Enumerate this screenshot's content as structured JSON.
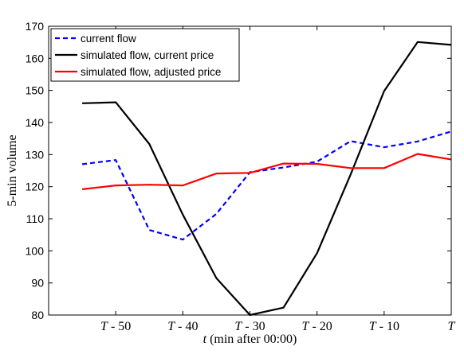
{
  "chart_data": {
    "type": "line",
    "title": "",
    "xlabel": "t (min after 00:00)",
    "xlabel_italic": "t",
    "xlabel_rest": " (min after 00:00)",
    "ylabel": "5-min volume",
    "xlim": [
      -60,
      0
    ],
    "ylim": [
      80,
      170
    ],
    "x": [
      -55,
      -50,
      -45,
      -40,
      -35,
      -30,
      -25,
      -20,
      -15,
      -10,
      -5,
      0
    ],
    "xticks": [
      {
        "value": -50,
        "var": "T",
        "rest": " - 50"
      },
      {
        "value": -40,
        "var": "T",
        "rest": " - 40"
      },
      {
        "value": -30,
        "var": "T",
        "rest": " - 30"
      },
      {
        "value": -20,
        "var": "T",
        "rest": " - 20"
      },
      {
        "value": -10,
        "var": "T",
        "rest": " - 10"
      },
      {
        "value": 0,
        "var": "T",
        "rest": ""
      }
    ],
    "yticks": [
      "80",
      "90",
      "100",
      "110",
      "120",
      "130",
      "140",
      "150",
      "160",
      "170"
    ],
    "grid": false,
    "legend_position": "top-left",
    "series": [
      {
        "name": "current flow",
        "color": "#0000ff",
        "dash": "dashed",
        "values": [
          127,
          128.3,
          106.5,
          103.5,
          111.5,
          124.5,
          126,
          127.8,
          134.2,
          132.3,
          134.1,
          137.2
        ]
      },
      {
        "name": "simulated flow, current price",
        "color": "#000000",
        "dash": "solid",
        "values": [
          146,
          146.3,
          133.3,
          111.3,
          91.5,
          80,
          82.3,
          99.3,
          123.8,
          149.8,
          165.1,
          164.2
        ]
      },
      {
        "name": "simulated flow, adjusted price",
        "color": "#ff0000",
        "dash": "solid",
        "values": [
          119.2,
          120.4,
          120.6,
          120.4,
          124.1,
          124.3,
          127.2,
          127.1,
          125.8,
          125.8,
          130.2,
          128.5
        ]
      }
    ]
  }
}
